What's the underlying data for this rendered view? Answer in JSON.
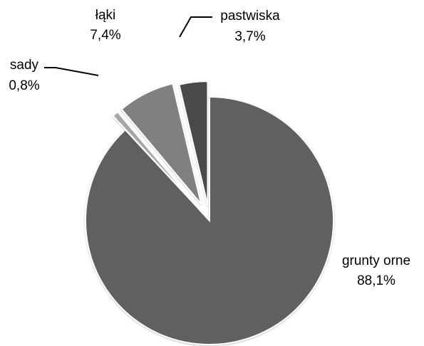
{
  "chart_data": {
    "type": "pie",
    "title": "",
    "slices": [
      {
        "label": "grunty orne",
        "value": 88.1,
        "value_label": "88,1%",
        "color": "#606060"
      },
      {
        "label": "sady",
        "value": 0.8,
        "value_label": "0,8%",
        "color": "#a6a6a6"
      },
      {
        "label": "łąki",
        "value": 7.4,
        "value_label": "7,4%",
        "color": "#808080"
      },
      {
        "label": "pastwiska",
        "value": 3.7,
        "value_label": "3,7%",
        "color": "#4a4a4a"
      }
    ],
    "exploded": true,
    "legend": "none"
  }
}
